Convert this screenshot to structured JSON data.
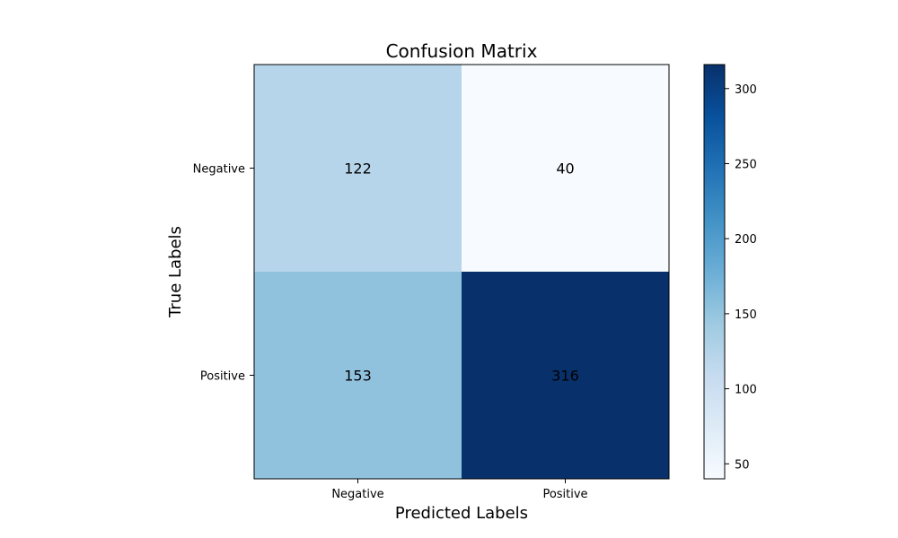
{
  "chart_data": {
    "type": "heatmap",
    "title": "Confusion Matrix",
    "xlabel": "Predicted Labels",
    "ylabel": "True Labels",
    "x_categories": [
      "Negative",
      "Positive"
    ],
    "y_categories": [
      "Negative",
      "Positive"
    ],
    "values": [
      [
        122,
        40
      ],
      [
        153,
        316
      ]
    ],
    "colormap": "Blues",
    "vmin": 40,
    "vmax": 316,
    "colorbar_ticks": [
      50,
      100,
      150,
      200,
      250,
      300
    ],
    "colorbar_tick_labels": [
      "50",
      "100",
      "150",
      "200",
      "250",
      "300"
    ]
  }
}
